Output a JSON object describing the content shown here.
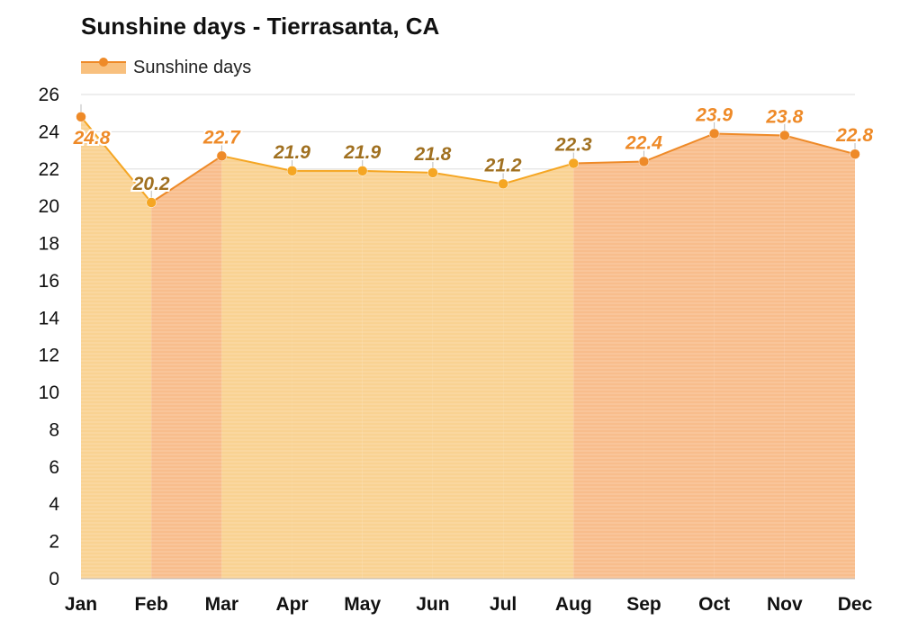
{
  "chart_data": {
    "type": "area",
    "title": "Sunshine days - Tierrasanta, CA",
    "categories": [
      "Jan",
      "Feb",
      "Mar",
      "Apr",
      "May",
      "Jun",
      "Jul",
      "Aug",
      "Sep",
      "Oct",
      "Nov",
      "Dec"
    ],
    "series": [
      {
        "name": "Sunshine days",
        "values": [
          24.8,
          20.2,
          22.7,
          21.9,
          21.9,
          21.8,
          21.2,
          22.3,
          22.4,
          23.9,
          23.8,
          22.8
        ]
      }
    ],
    "data_labels": [
      "24.8",
      "20.2",
      "22.7",
      "21.9",
      "21.9",
      "21.8",
      "21.2",
      "22.3",
      "22.4",
      "23.9",
      "23.8",
      "22.8"
    ],
    "yticks": [
      0,
      2,
      4,
      6,
      8,
      10,
      12,
      14,
      16,
      18,
      20,
      22,
      24,
      26
    ],
    "ylim": [
      0,
      26
    ],
    "xlabel": "",
    "ylabel": "",
    "grid": true,
    "legend": "top-left",
    "month_band_colors": [
      "light",
      "dark",
      "light",
      "light",
      "light",
      "light",
      "light",
      "dark",
      "dark",
      "dark",
      "dark"
    ]
  },
  "colors": {
    "area_light": "#f9d292",
    "area_dark": "#f8bd8c",
    "line_light": "#f5a623",
    "line_dark": "#ee8a28",
    "label_light": "#a07020",
    "label_dark": "#ee8a28",
    "gridline": "#dddddd",
    "axis": "#bbbbbb"
  }
}
